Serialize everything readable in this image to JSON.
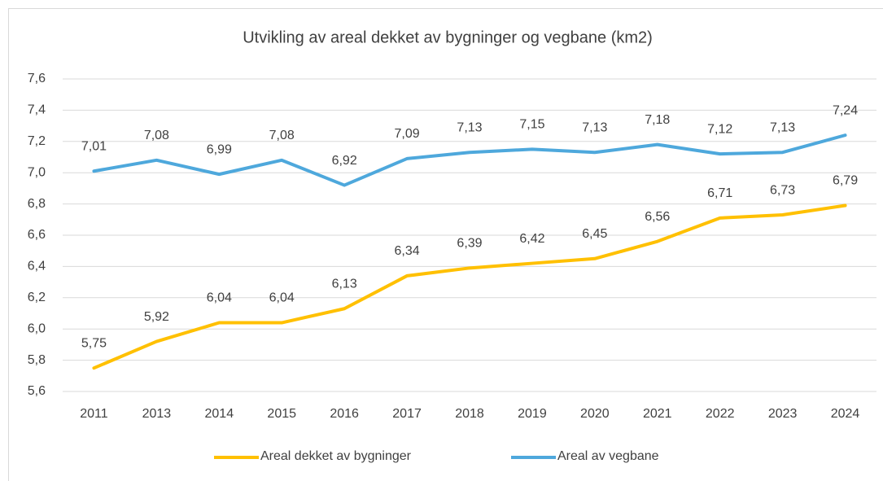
{
  "chart_data": {
    "type": "line",
    "title": "Utvikling av areal dekket av bygninger og vegbane  (km2)",
    "categories": [
      "2011",
      "2013",
      "2014",
      "2015",
      "2016",
      "2017",
      "2018",
      "2019",
      "2020",
      "2021",
      "2022",
      "2023",
      "2024"
    ],
    "series": [
      {
        "name": "Areal dekket av bygninger",
        "color": "#ffc000",
        "values": [
          5.75,
          5.92,
          6.04,
          6.04,
          6.13,
          6.34,
          6.39,
          6.42,
          6.45,
          6.56,
          6.71,
          6.73,
          6.79
        ],
        "value_labels": [
          "5,75",
          "5,92",
          "6,04",
          "6,04",
          "6,13",
          "6,34",
          "6,39",
          "6,42",
          "6,45",
          "6,56",
          "6,71",
          "6,73",
          "6,79"
        ]
      },
      {
        "name": "Areal av vegbane",
        "color": "#4ea8dc",
        "values": [
          7.01,
          7.08,
          6.99,
          7.08,
          6.92,
          7.09,
          7.13,
          7.15,
          7.13,
          7.18,
          7.12,
          7.13,
          7.24
        ],
        "value_labels": [
          "7,01",
          "7,08",
          "6,99",
          "7,08",
          "6,92",
          "7,09",
          "7,13",
          "7,15",
          "7,13",
          "7,18",
          "7,12",
          "7,13",
          "7,24"
        ]
      }
    ],
    "ylim": [
      5.6,
      7.6
    ],
    "yticks": [
      {
        "value": 5.6,
        "label": "5,6"
      },
      {
        "value": 5.8,
        "label": "5,8"
      },
      {
        "value": 6.0,
        "label": "6,0"
      },
      {
        "value": 6.2,
        "label": "6,2"
      },
      {
        "value": 6.4,
        "label": "6,4"
      },
      {
        "value": 6.6,
        "label": "6,6"
      },
      {
        "value": 6.8,
        "label": "6,8"
      },
      {
        "value": 7.0,
        "label": "7,0"
      },
      {
        "value": 7.2,
        "label": "7,2"
      },
      {
        "value": 7.4,
        "label": "7,4"
      },
      {
        "value": 7.6,
        "label": "7,6"
      }
    ],
    "grid": true,
    "legend": "bottom"
  }
}
